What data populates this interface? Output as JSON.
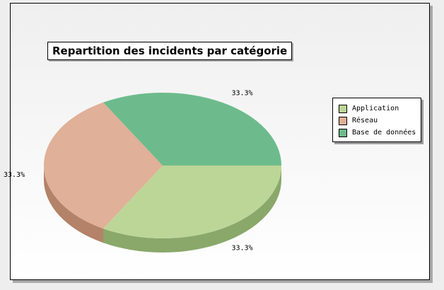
{
  "chart_data": {
    "type": "pie",
    "title": "Repartition des incidents par catégorie",
    "categories": [
      "Application",
      "Réseau",
      "Base de données"
    ],
    "values": [
      33.3,
      33.3,
      33.3
    ],
    "data_labels": [
      "33.3%",
      "33.3%",
      "33.3%"
    ],
    "colors": [
      "#bcd697",
      "#e0b098",
      "#6dbb8c"
    ],
    "side_colors": [
      "#8aa86a",
      "#b38268",
      "#4f9068"
    ],
    "start_angle_deg": 0,
    "direction": "clockwise",
    "style": "3d",
    "legend_position": "right"
  }
}
